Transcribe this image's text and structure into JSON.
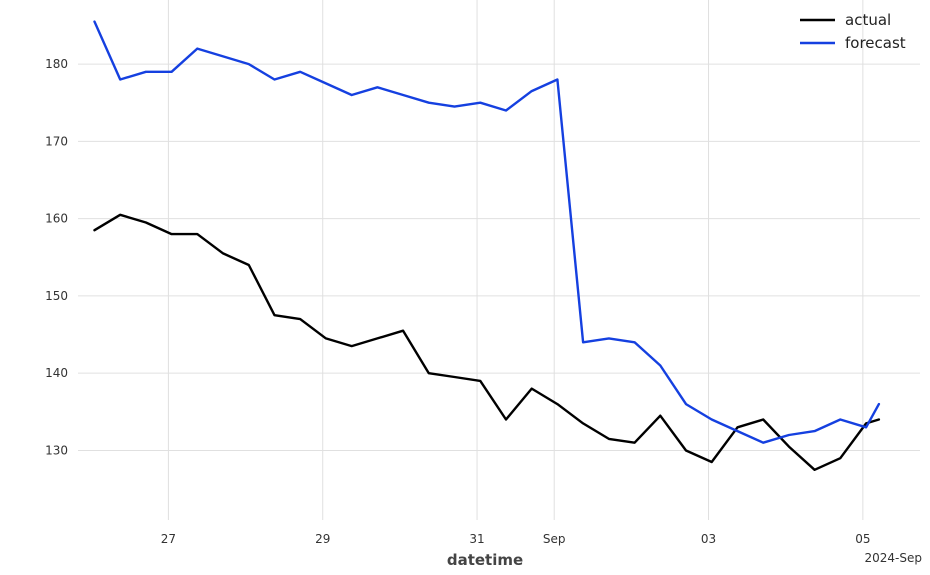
{
  "chart_data": {
    "type": "line",
    "title": "",
    "xlabel": "datetime",
    "ylabel": "",
    "x_offset_label": "2024-Sep",
    "x_tick_labels": [
      "27",
      "29",
      "31",
      "Sep",
      "03",
      "05"
    ],
    "x_tick_dates": [
      "2024-08-27",
      "2024-08-29",
      "2024-08-31",
      "2024-09-01",
      "2024-09-03",
      "2024-09-05"
    ],
    "y_ticks": [
      130,
      140,
      150,
      160,
      170,
      180
    ],
    "ylim": [
      121,
      187
    ],
    "xlim": [
      "2024-08-25 20:30",
      "2024-09-05 10:00"
    ],
    "grid": true,
    "legend_position": "top-right",
    "series": [
      {
        "name": "actual",
        "color": "#000000",
        "x": [
          "2024-08-26 01:00",
          "2024-08-26 09:00",
          "2024-08-26 17:00",
          "2024-08-27 01:00",
          "2024-08-27 09:00",
          "2024-08-27 17:00",
          "2024-08-28 01:00",
          "2024-08-28 09:00",
          "2024-08-28 17:00",
          "2024-08-29 01:00",
          "2024-08-29 09:00",
          "2024-08-29 17:00",
          "2024-08-30 01:00",
          "2024-08-30 09:00",
          "2024-08-30 17:00",
          "2024-08-31 01:00",
          "2024-08-31 09:00",
          "2024-08-31 17:00",
          "2024-09-01 01:00",
          "2024-09-01 09:00",
          "2024-09-01 17:00",
          "2024-09-02 01:00",
          "2024-09-02 09:00",
          "2024-09-02 17:00",
          "2024-09-03 01:00",
          "2024-09-03 09:00",
          "2024-09-03 17:00",
          "2024-09-04 01:00",
          "2024-09-04 09:00",
          "2024-09-04 17:00",
          "2024-09-05 01:00",
          "2024-09-05 05:00"
        ],
        "values": [
          158.5,
          160.5,
          159.5,
          158.0,
          158.0,
          155.5,
          154.0,
          147.5,
          147.0,
          144.5,
          143.5,
          144.5,
          145.5,
          140.0,
          139.5,
          139.0,
          134.0,
          138.0,
          136.0,
          133.5,
          131.5,
          131.0,
          134.5,
          130.0,
          128.5,
          133.0,
          134.0,
          130.5,
          127.5,
          129.0,
          133.5,
          134.0
        ]
      },
      {
        "name": "forecast",
        "color": "#1540e0",
        "x": [
          "2024-08-26 01:00",
          "2024-08-26 09:00",
          "2024-08-26 17:00",
          "2024-08-27 01:00",
          "2024-08-27 09:00",
          "2024-08-27 17:00",
          "2024-08-28 01:00",
          "2024-08-28 09:00",
          "2024-08-28 17:00",
          "2024-08-29 01:00",
          "2024-08-29 09:00",
          "2024-08-29 17:00",
          "2024-08-30 01:00",
          "2024-08-30 09:00",
          "2024-08-30 17:00",
          "2024-08-31 01:00",
          "2024-08-31 09:00",
          "2024-08-31 17:00",
          "2024-09-01 01:00",
          "2024-09-01 09:00",
          "2024-09-01 17:00",
          "2024-09-02 01:00",
          "2024-09-02 09:00",
          "2024-09-02 17:00",
          "2024-09-03 01:00",
          "2024-09-03 09:00",
          "2024-09-03 17:00",
          "2024-09-04 01:00",
          "2024-09-04 09:00",
          "2024-09-04 17:00",
          "2024-09-05 01:00",
          "2024-09-05 05:00"
        ],
        "values": [
          185.5,
          178.0,
          179.0,
          179.0,
          182.0,
          181.0,
          180.0,
          178.0,
          179.0,
          177.5,
          176.0,
          177.0,
          176.0,
          175.0,
          174.5,
          175.0,
          174.0,
          176.5,
          178.0,
          144.0,
          144.5,
          144.0,
          141.0,
          136.0,
          134.0,
          132.5,
          131.0,
          132.0,
          132.5,
          134.0,
          133.0,
          136.0
        ]
      }
    ]
  }
}
